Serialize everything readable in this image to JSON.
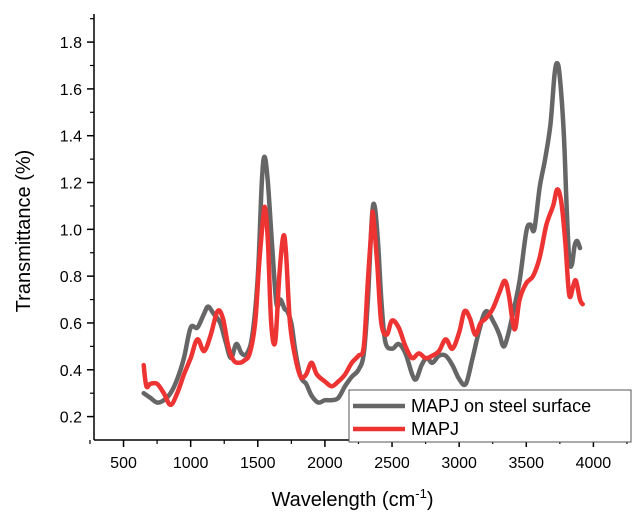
{
  "chart_data": {
    "type": "line",
    "xlabel": "Wavelength (cm",
    "xlabel_sup": "-1",
    "xlabel_close": ")",
    "ylabel": "Transmittance (%)",
    "xlim": [
      280,
      4280
    ],
    "ylim": [
      0.1,
      1.92
    ],
    "x_ticks": [
      500,
      1000,
      1500,
      2000,
      2500,
      3000,
      3500,
      4000
    ],
    "y_ticks": [
      0.2,
      0.4,
      0.6,
      0.8,
      1.0,
      1.2,
      1.4,
      1.6,
      1.8
    ],
    "x_tick_labels": [
      "500",
      "1000",
      "1500",
      "2000",
      "2500",
      "3000",
      "3500",
      "4000"
    ],
    "y_tick_labels": [
      "0.2",
      "0.4",
      "0.6",
      "0.8",
      "1.0",
      "1.2",
      "1.4",
      "1.6",
      "1.8"
    ],
    "legend_position": "bottom-right",
    "series": [
      {
        "name": "MAPJ on steel surface",
        "color": "#666666",
        "points": [
          [
            650,
            0.3
          ],
          [
            700,
            0.28
          ],
          [
            750,
            0.26
          ],
          [
            800,
            0.27
          ],
          [
            850,
            0.3
          ],
          [
            900,
            0.36
          ],
          [
            950,
            0.45
          ],
          [
            1000,
            0.58
          ],
          [
            1050,
            0.58
          ],
          [
            1100,
            0.64
          ],
          [
            1130,
            0.67
          ],
          [
            1170,
            0.64
          ],
          [
            1220,
            0.6
          ],
          [
            1260,
            0.52
          ],
          [
            1300,
            0.45
          ],
          [
            1340,
            0.51
          ],
          [
            1380,
            0.47
          ],
          [
            1420,
            0.47
          ],
          [
            1460,
            0.55
          ],
          [
            1500,
            0.8
          ],
          [
            1530,
            1.2
          ],
          [
            1550,
            1.31
          ],
          [
            1575,
            1.2
          ],
          [
            1610,
            0.9
          ],
          [
            1640,
            0.68
          ],
          [
            1670,
            0.7
          ],
          [
            1700,
            0.66
          ],
          [
            1720,
            0.65
          ],
          [
            1750,
            0.6
          ],
          [
            1780,
            0.48
          ],
          [
            1820,
            0.37
          ],
          [
            1860,
            0.34
          ],
          [
            1900,
            0.29
          ],
          [
            1950,
            0.26
          ],
          [
            2000,
            0.27
          ],
          [
            2050,
            0.27
          ],
          [
            2100,
            0.28
          ],
          [
            2150,
            0.33
          ],
          [
            2200,
            0.37
          ],
          [
            2250,
            0.4
          ],
          [
            2290,
            0.47
          ],
          [
            2320,
            0.7
          ],
          [
            2350,
            1.05
          ],
          [
            2370,
            1.1
          ],
          [
            2395,
            0.95
          ],
          [
            2420,
            0.7
          ],
          [
            2450,
            0.52
          ],
          [
            2500,
            0.49
          ],
          [
            2550,
            0.51
          ],
          [
            2600,
            0.47
          ],
          [
            2650,
            0.38
          ],
          [
            2680,
            0.36
          ],
          [
            2720,
            0.42
          ],
          [
            2760,
            0.45
          ],
          [
            2800,
            0.43
          ],
          [
            2850,
            0.46
          ],
          [
            2900,
            0.46
          ],
          [
            2950,
            0.42
          ],
          [
            3000,
            0.36
          ],
          [
            3050,
            0.34
          ],
          [
            3100,
            0.45
          ],
          [
            3150,
            0.57
          ],
          [
            3200,
            0.65
          ],
          [
            3260,
            0.6
          ],
          [
            3300,
            0.55
          ],
          [
            3330,
            0.5
          ],
          [
            3360,
            0.54
          ],
          [
            3400,
            0.64
          ],
          [
            3450,
            0.78
          ],
          [
            3500,
            0.99
          ],
          [
            3530,
            1.02
          ],
          [
            3560,
            1.0
          ],
          [
            3600,
            1.18
          ],
          [
            3640,
            1.3
          ],
          [
            3680,
            1.45
          ],
          [
            3710,
            1.66
          ],
          [
            3730,
            1.71
          ],
          [
            3750,
            1.65
          ],
          [
            3780,
            1.4
          ],
          [
            3800,
            1.1
          ],
          [
            3820,
            0.87
          ],
          [
            3840,
            0.85
          ],
          [
            3860,
            0.93
          ],
          [
            3880,
            0.95
          ],
          [
            3900,
            0.92
          ]
        ]
      },
      {
        "name": "MAPJ",
        "color": "#ee3333",
        "points": [
          [
            650,
            0.42
          ],
          [
            670,
            0.33
          ],
          [
            700,
            0.34
          ],
          [
            750,
            0.34
          ],
          [
            800,
            0.3
          ],
          [
            850,
            0.25
          ],
          [
            900,
            0.3
          ],
          [
            950,
            0.38
          ],
          [
            1000,
            0.45
          ],
          [
            1050,
            0.53
          ],
          [
            1100,
            0.48
          ],
          [
            1150,
            0.55
          ],
          [
            1200,
            0.65
          ],
          [
            1240,
            0.62
          ],
          [
            1280,
            0.5
          ],
          [
            1320,
            0.44
          ],
          [
            1360,
            0.43
          ],
          [
            1400,
            0.44
          ],
          [
            1440,
            0.47
          ],
          [
            1480,
            0.6
          ],
          [
            1510,
            0.85
          ],
          [
            1540,
            1.05
          ],
          [
            1555,
            1.09
          ],
          [
            1575,
            0.95
          ],
          [
            1600,
            0.6
          ],
          [
            1630,
            0.52
          ],
          [
            1660,
            0.8
          ],
          [
            1690,
            0.97
          ],
          [
            1710,
            0.9
          ],
          [
            1740,
            0.6
          ],
          [
            1780,
            0.45
          ],
          [
            1820,
            0.37
          ],
          [
            1860,
            0.38
          ],
          [
            1900,
            0.43
          ],
          [
            1940,
            0.38
          ],
          [
            2000,
            0.35
          ],
          [
            2050,
            0.33
          ],
          [
            2100,
            0.35
          ],
          [
            2150,
            0.38
          ],
          [
            2200,
            0.43
          ],
          [
            2250,
            0.46
          ],
          [
            2290,
            0.5
          ],
          [
            2320,
            0.78
          ],
          [
            2350,
            1.03
          ],
          [
            2360,
            1.06
          ],
          [
            2390,
            0.85
          ],
          [
            2420,
            0.6
          ],
          [
            2460,
            0.55
          ],
          [
            2500,
            0.61
          ],
          [
            2550,
            0.58
          ],
          [
            2600,
            0.5
          ],
          [
            2650,
            0.45
          ],
          [
            2700,
            0.47
          ],
          [
            2750,
            0.45
          ],
          [
            2800,
            0.46
          ],
          [
            2850,
            0.48
          ],
          [
            2900,
            0.53
          ],
          [
            2950,
            0.49
          ],
          [
            3000,
            0.56
          ],
          [
            3040,
            0.65
          ],
          [
            3080,
            0.62
          ],
          [
            3120,
            0.55
          ],
          [
            3160,
            0.6
          ],
          [
            3200,
            0.62
          ],
          [
            3250,
            0.66
          ],
          [
            3300,
            0.73
          ],
          [
            3340,
            0.78
          ],
          [
            3370,
            0.72
          ],
          [
            3400,
            0.6
          ],
          [
            3420,
            0.58
          ],
          [
            3450,
            0.7
          ],
          [
            3500,
            0.77
          ],
          [
            3550,
            0.8
          ],
          [
            3600,
            0.88
          ],
          [
            3650,
            1.02
          ],
          [
            3700,
            1.1
          ],
          [
            3730,
            1.17
          ],
          [
            3760,
            1.12
          ],
          [
            3790,
            0.95
          ],
          [
            3820,
            0.72
          ],
          [
            3850,
            0.76
          ],
          [
            3870,
            0.78
          ],
          [
            3900,
            0.7
          ],
          [
            3920,
            0.68
          ]
        ]
      }
    ]
  }
}
